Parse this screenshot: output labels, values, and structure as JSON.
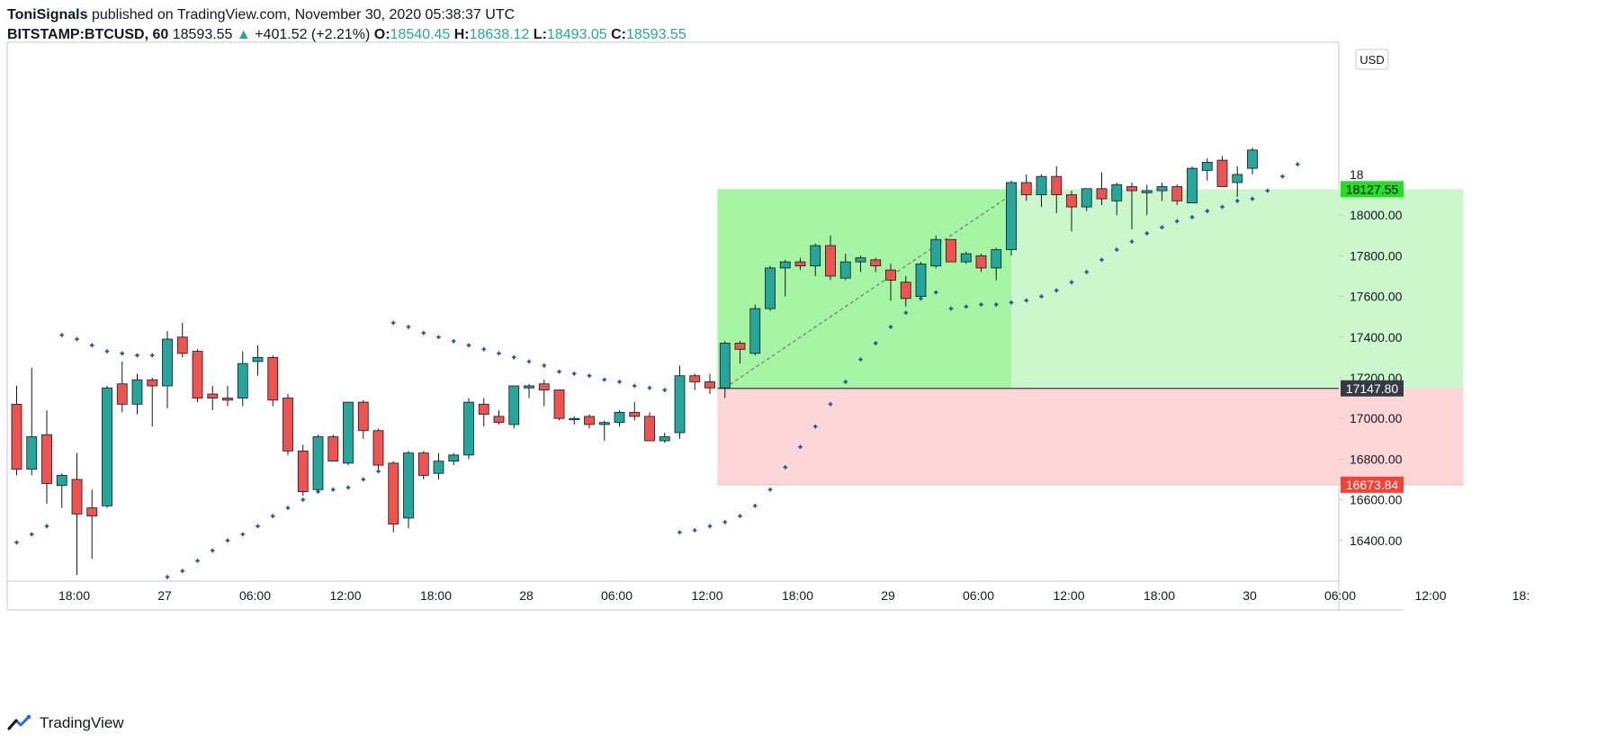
{
  "header": {
    "author": "ToniSignals",
    "published_text": "published on TradingView.com, November 30, 2020 05:38:37 UTC",
    "symbol": "BITSTAMP:BTCUSD, 60",
    "last_price": "18593.55",
    "change": "+401.52 (+2.21%)",
    "open_label": "O:",
    "open_value": "18540.45",
    "high_label": "H:",
    "high_value": "18638.12",
    "low_label": "L:",
    "low_value": "18493.05",
    "close_label": "C:",
    "close_value": "18593.55"
  },
  "currency_button": "USD",
  "footer": {
    "brand": "TradingView"
  },
  "colors": {
    "up": "#26a69a",
    "down": "#ef5350",
    "psar": "#1e4f9c",
    "target_zone": "#a5f5a5",
    "target_zone_light": "#ccf7cc",
    "stop_zone": "#fdd7d7",
    "target_label": "#22e022",
    "entry_label": "#363a45",
    "stop_label": "#f44336"
  },
  "chart_data": {
    "type": "candlestick",
    "symbol": "BITSTAMP:BTCUSD",
    "interval": "60",
    "ylim": [
      16200,
      18850
    ],
    "y_ticks": [
      16400,
      16600,
      16800,
      17000,
      17200,
      17400,
      17600,
      17800,
      18000
    ],
    "y_tick_labels": [
      "16400.00",
      "16600.00",
      "16800.00",
      "17000.00",
      "17200.00",
      "17400.00",
      "17600.00",
      "17800.00",
      "18000.00"
    ],
    "x_tick_labels": [
      "18:00",
      "27",
      "06:00",
      "12:00",
      "18:00",
      "28",
      "06:00",
      "12:00",
      "18:00",
      "29",
      "06:00",
      "12:00",
      "18:00",
      "30",
      "06:00",
      "12:00",
      "18:"
    ],
    "x_tick_bar_index": [
      4,
      10,
      16,
      22,
      28,
      34,
      40,
      46,
      52,
      58,
      64,
      70,
      76,
      82,
      88,
      94,
      100
    ],
    "candles": [
      {
        "o": 17070,
        "h": 17160,
        "l": 16720,
        "c": 16750
      },
      {
        "o": 16750,
        "h": 17250,
        "l": 16720,
        "c": 16910
      },
      {
        "o": 16920,
        "h": 17040,
        "l": 16580,
        "c": 16680
      },
      {
        "o": 16670,
        "h": 16730,
        "l": 16560,
        "c": 16720
      },
      {
        "o": 16700,
        "h": 16830,
        "l": 16230,
        "c": 16530
      },
      {
        "o": 16560,
        "h": 16650,
        "l": 16310,
        "c": 16520
      },
      {
        "o": 16570,
        "h": 17160,
        "l": 16560,
        "c": 17150
      },
      {
        "o": 17170,
        "h": 17280,
        "l": 17030,
        "c": 17070
      },
      {
        "o": 17070,
        "h": 17220,
        "l": 17020,
        "c": 17190
      },
      {
        "o": 17190,
        "h": 17200,
        "l": 16960,
        "c": 17160
      },
      {
        "o": 17160,
        "h": 17430,
        "l": 17050,
        "c": 17390
      },
      {
        "o": 17400,
        "h": 17470,
        "l": 17300,
        "c": 17320
      },
      {
        "o": 17330,
        "h": 17340,
        "l": 17080,
        "c": 17100
      },
      {
        "o": 17120,
        "h": 17160,
        "l": 17040,
        "c": 17100
      },
      {
        "o": 17100,
        "h": 17160,
        "l": 17060,
        "c": 17090
      },
      {
        "o": 17100,
        "h": 17330,
        "l": 17060,
        "c": 17270
      },
      {
        "o": 17280,
        "h": 17360,
        "l": 17210,
        "c": 17300
      },
      {
        "o": 17300,
        "h": 17310,
        "l": 17060,
        "c": 17090
      },
      {
        "o": 17100,
        "h": 17120,
        "l": 16820,
        "c": 16840
      },
      {
        "o": 16840,
        "h": 16870,
        "l": 16620,
        "c": 16640
      },
      {
        "o": 16650,
        "h": 16920,
        "l": 16640,
        "c": 16910
      },
      {
        "o": 16910,
        "h": 16920,
        "l": 16790,
        "c": 16790
      },
      {
        "o": 16780,
        "h": 17080,
        "l": 16770,
        "c": 17080
      },
      {
        "o": 17080,
        "h": 17090,
        "l": 16900,
        "c": 16940
      },
      {
        "o": 16940,
        "h": 16950,
        "l": 16750,
        "c": 16770
      },
      {
        "o": 16780,
        "h": 16790,
        "l": 16440,
        "c": 16480
      },
      {
        "o": 16510,
        "h": 16840,
        "l": 16460,
        "c": 16830
      },
      {
        "o": 16830,
        "h": 16840,
        "l": 16700,
        "c": 16720
      },
      {
        "o": 16730,
        "h": 16830,
        "l": 16700,
        "c": 16790
      },
      {
        "o": 16790,
        "h": 16830,
        "l": 16770,
        "c": 16820
      },
      {
        "o": 16820,
        "h": 17100,
        "l": 16800,
        "c": 17080
      },
      {
        "o": 17070,
        "h": 17100,
        "l": 16960,
        "c": 17020
      },
      {
        "o": 17010,
        "h": 17040,
        "l": 16970,
        "c": 16980
      },
      {
        "o": 16970,
        "h": 17160,
        "l": 16950,
        "c": 17160
      },
      {
        "o": 17150,
        "h": 17170,
        "l": 17100,
        "c": 17160
      },
      {
        "o": 17170,
        "h": 17190,
        "l": 17060,
        "c": 17140
      },
      {
        "o": 17140,
        "h": 17140,
        "l": 16990,
        "c": 17000
      },
      {
        "o": 17000,
        "h": 17010,
        "l": 16970,
        "c": 17000
      },
      {
        "o": 17010,
        "h": 17020,
        "l": 16950,
        "c": 16970
      },
      {
        "o": 16970,
        "h": 16990,
        "l": 16890,
        "c": 16980
      },
      {
        "o": 16980,
        "h": 17040,
        "l": 16960,
        "c": 17030
      },
      {
        "o": 17030,
        "h": 17080,
        "l": 16990,
        "c": 17010
      },
      {
        "o": 17010,
        "h": 17030,
        "l": 16890,
        "c": 16890
      },
      {
        "o": 16890,
        "h": 16930,
        "l": 16880,
        "c": 16910
      },
      {
        "o": 16930,
        "h": 17260,
        "l": 16900,
        "c": 17210
      },
      {
        "o": 17210,
        "h": 17220,
        "l": 17140,
        "c": 17180
      },
      {
        "o": 17180,
        "h": 17220,
        "l": 17120,
        "c": 17150
      },
      {
        "o": 17150,
        "h": 17380,
        "l": 17100,
        "c": 17370
      },
      {
        "o": 17370,
        "h": 17380,
        "l": 17270,
        "c": 17340
      },
      {
        "o": 17320,
        "h": 17560,
        "l": 17310,
        "c": 17540
      },
      {
        "o": 17540,
        "h": 17750,
        "l": 17530,
        "c": 17740
      },
      {
        "o": 17740,
        "h": 17780,
        "l": 17600,
        "c": 17770
      },
      {
        "o": 17770,
        "h": 17790,
        "l": 17730,
        "c": 17750
      },
      {
        "o": 17750,
        "h": 17860,
        "l": 17700,
        "c": 17850
      },
      {
        "o": 17850,
        "h": 17900,
        "l": 17680,
        "c": 17700
      },
      {
        "o": 17690,
        "h": 17810,
        "l": 17680,
        "c": 17770
      },
      {
        "o": 17770,
        "h": 17800,
        "l": 17720,
        "c": 17790
      },
      {
        "o": 17780,
        "h": 17790,
        "l": 17720,
        "c": 17750
      },
      {
        "o": 17730,
        "h": 17760,
        "l": 17580,
        "c": 17680
      },
      {
        "o": 17670,
        "h": 17700,
        "l": 17550,
        "c": 17590
      },
      {
        "o": 17600,
        "h": 17770,
        "l": 17600,
        "c": 17760
      },
      {
        "o": 17750,
        "h": 17900,
        "l": 17740,
        "c": 17880
      },
      {
        "o": 17880,
        "h": 17880,
        "l": 17770,
        "c": 17770
      },
      {
        "o": 17770,
        "h": 17820,
        "l": 17760,
        "c": 17810
      },
      {
        "o": 17800,
        "h": 17810,
        "l": 17720,
        "c": 17740
      },
      {
        "o": 17740,
        "h": 17840,
        "l": 17680,
        "c": 17830
      },
      {
        "o": 17830,
        "h": 18170,
        "l": 17800,
        "c": 18160
      },
      {
        "o": 18160,
        "h": 18200,
        "l": 18070,
        "c": 18100
      },
      {
        "o": 18100,
        "h": 18200,
        "l": 18040,
        "c": 18190
      },
      {
        "o": 18190,
        "h": 18240,
        "l": 18010,
        "c": 18100
      },
      {
        "o": 18100,
        "h": 18120,
        "l": 17920,
        "c": 18040
      },
      {
        "o": 18040,
        "h": 18130,
        "l": 18020,
        "c": 18130
      },
      {
        "o": 18130,
        "h": 18210,
        "l": 18050,
        "c": 18080
      },
      {
        "o": 18070,
        "h": 18160,
        "l": 18000,
        "c": 18150
      },
      {
        "o": 18140,
        "h": 18160,
        "l": 17930,
        "c": 18120
      },
      {
        "o": 18110,
        "h": 18150,
        "l": 18000,
        "c": 18120
      },
      {
        "o": 18120,
        "h": 18160,
        "l": 18070,
        "c": 18140
      },
      {
        "o": 18140,
        "h": 18150,
        "l": 18050,
        "c": 18070
      },
      {
        "o": 18060,
        "h": 18240,
        "l": 18060,
        "c": 18230
      },
      {
        "o": 18220,
        "h": 18280,
        "l": 18170,
        "c": 18260
      },
      {
        "o": 18270,
        "h": 18290,
        "l": 18140,
        "c": 18140
      },
      {
        "o": 18160,
        "h": 18240,
        "l": 18090,
        "c": 18200
      },
      {
        "o": 18230,
        "h": 18330,
        "l": 18200,
        "c": 18320
      }
    ],
    "psar": [
      [
        0,
        16390
      ],
      [
        1,
        16430
      ],
      [
        2,
        16470
      ],
      [
        3,
        17410
      ],
      [
        4,
        17390
      ],
      [
        5,
        17360
      ],
      [
        6,
        17330
      ],
      [
        7,
        17320
      ],
      [
        8,
        17310
      ],
      [
        9,
        17310
      ],
      [
        10,
        16220
      ],
      [
        11,
        16250
      ],
      [
        12,
        16300
      ],
      [
        13,
        16350
      ],
      [
        14,
        16400
      ],
      [
        15,
        16430
      ],
      [
        16,
        16470
      ],
      [
        17,
        16520
      ],
      [
        18,
        16560
      ],
      [
        19,
        16600
      ],
      [
        20,
        16640
      ],
      [
        21,
        16650
      ],
      [
        22,
        16660
      ],
      [
        23,
        16700
      ],
      [
        24,
        16740
      ],
      [
        25,
        17470
      ],
      [
        26,
        17450
      ],
      [
        27,
        17420
      ],
      [
        28,
        17400
      ],
      [
        29,
        17380
      ],
      [
        30,
        17360
      ],
      [
        31,
        17340
      ],
      [
        32,
        17320
      ],
      [
        33,
        17300
      ],
      [
        34,
        17280
      ],
      [
        35,
        17260
      ],
      [
        36,
        17230
      ],
      [
        37,
        17220
      ],
      [
        38,
        17210
      ],
      [
        39,
        17190
      ],
      [
        40,
        17180
      ],
      [
        41,
        17160
      ],
      [
        42,
        17150
      ],
      [
        43,
        17140
      ],
      [
        44,
        16440
      ],
      [
        45,
        16450
      ],
      [
        46,
        16470
      ],
      [
        47,
        16490
      ],
      [
        48,
        16520
      ],
      [
        49,
        16570
      ],
      [
        50,
        16650
      ],
      [
        51,
        16760
      ],
      [
        52,
        16860
      ],
      [
        53,
        16960
      ],
      [
        54,
        17070
      ],
      [
        55,
        17180
      ],
      [
        56,
        17290
      ],
      [
        57,
        17370
      ],
      [
        58,
        17450
      ],
      [
        59,
        17520
      ],
      [
        60,
        17590
      ],
      [
        61,
        17620
      ],
      [
        62,
        17540
      ],
      [
        63,
        17550
      ],
      [
        64,
        17560
      ],
      [
        65,
        17560
      ],
      [
        66,
        17570
      ],
      [
        67,
        17580
      ],
      [
        68,
        17600
      ],
      [
        69,
        17630
      ],
      [
        70,
        17670
      ],
      [
        71,
        17720
      ],
      [
        72,
        17780
      ],
      [
        73,
        17830
      ],
      [
        74,
        17870
      ],
      [
        75,
        17910
      ],
      [
        76,
        17940
      ],
      [
        77,
        17970
      ],
      [
        78,
        17990
      ],
      [
        79,
        18020
      ],
      [
        80,
        18040
      ],
      [
        81,
        18070
      ],
      [
        82,
        18080
      ],
      [
        83,
        18120
      ],
      [
        84,
        18190
      ],
      [
        85,
        18250
      ]
    ],
    "position": {
      "type": "long",
      "start_bar": 47,
      "end_bar": 96,
      "target_fill_end_bar": 66,
      "entry": 17147.8,
      "target": 18127.55,
      "stop": 16673.84,
      "entry_label": "17147.80",
      "target_label": "18127.55",
      "stop_label": "16673.84",
      "price_path": [
        [
          47,
          17150
        ],
        [
          66,
          18100
        ]
      ]
    },
    "top_partial_label": "18",
    "top_partial_value": 18200
  }
}
